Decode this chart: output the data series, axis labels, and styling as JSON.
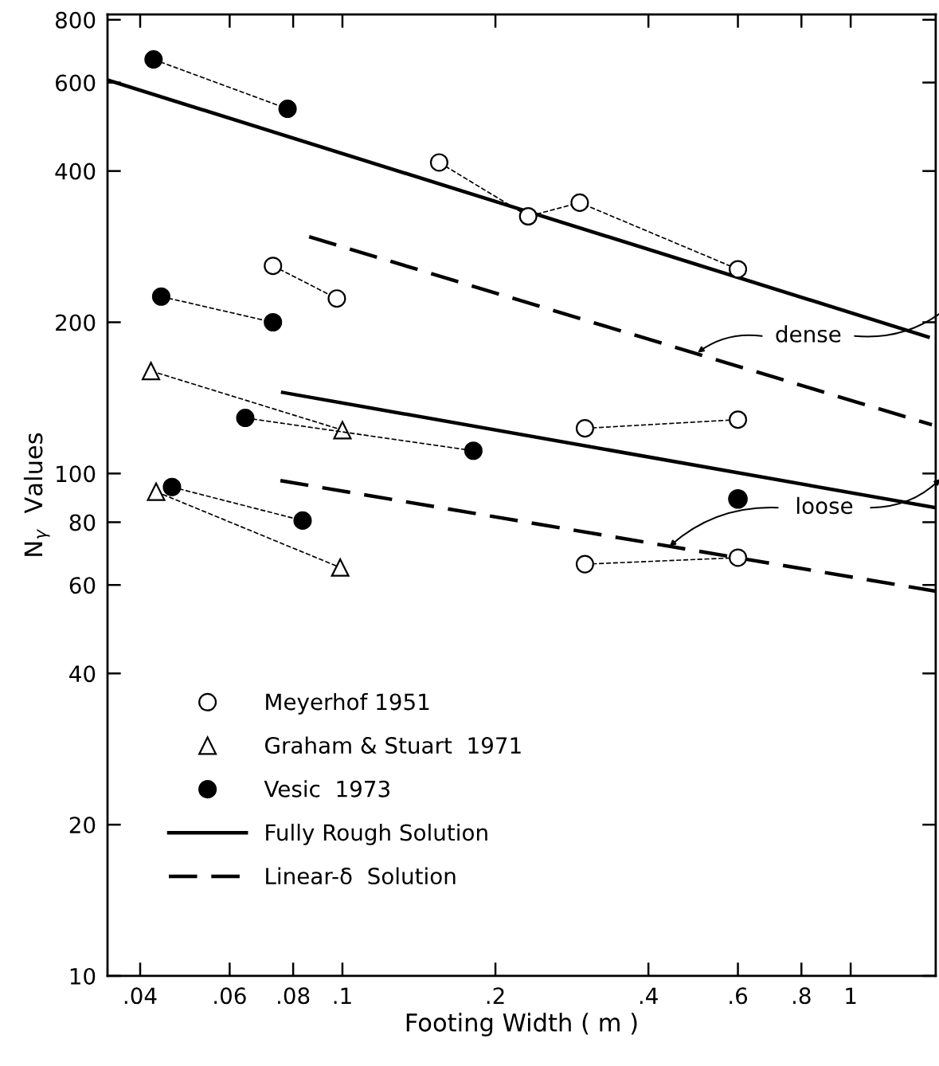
{
  "chart_data": {
    "type": "line",
    "xlabel": "Footing Width ( m )",
    "ylabel": "N$_{γ}$  Values",
    "log": "xy",
    "xlim": [
      0.0345,
      1.47
    ],
    "ylim": [
      10,
      820
    ],
    "xticks": [
      {
        "value": 0.04,
        "label": ".04"
      },
      {
        "value": 0.06,
        "label": ".06"
      },
      {
        "value": 0.08,
        "label": ".08"
      },
      {
        "value": 0.1,
        "label": ".1"
      },
      {
        "value": 0.2,
        "label": ".2"
      },
      {
        "value": 0.4,
        "label": ".4"
      },
      {
        "value": 0.6,
        "label": ".6"
      },
      {
        "value": 0.8,
        "label": ".8"
      },
      1
    ],
    "yticks": [
      10,
      20,
      40,
      60,
      80,
      100,
      200,
      400,
      600,
      800
    ],
    "grid": false,
    "legend": "bottom left",
    "series": [
      {
        "name": "Meyerhof 1951",
        "marker": "circle",
        "line_style": "dashed",
        "color": "#ffffff",
        "x": [
          0.155,
          0.232,
          0.293,
          0.6
        ],
        "values": [
          416,
          325,
          346,
          255
        ]
      },
      {
        "marker": "circle",
        "line_style": "dashed",
        "color": "#ffffff",
        "x": [
          0.073,
          0.0975
        ],
        "values": [
          259,
          223
        ]
      },
      {
        "marker": "circle",
        "line_style": "dashed",
        "color": "#ffffff",
        "x": [
          0.3,
          0.6
        ],
        "values": [
          123,
          128
        ]
      },
      {
        "marker": "circle",
        "line_style": "dashed",
        "color": "#ffffff",
        "x": [
          0.3,
          0.6
        ],
        "values": [
          66,
          68
        ]
      },
      {
        "name": "Graham & Stuart  1971",
        "marker": "triangle",
        "line_style": "dashed",
        "color": "#ffffff",
        "x": [
          0.042,
          0.1
        ],
        "values": [
          160,
          122
        ]
      },
      {
        "marker": "triangle",
        "line_style": "dashed",
        "color": "#ffffff",
        "x": [
          0.043,
          0.099
        ],
        "values": [
          92,
          65
        ]
      },
      {
        "name": "Vesic  1973",
        "marker": "circle",
        "line_style": "dashed",
        "color": "#000000",
        "x": [
          0.0425,
          0.078
        ],
        "values": [
          667,
          532
        ]
      },
      {
        "marker": "circle",
        "line_style": "dashed",
        "color": "#000000",
        "x": [
          0.044,
          0.073
        ],
        "values": [
          225,
          200
        ]
      },
      {
        "marker": "circle",
        "line_style": "dashed",
        "color": "#000000",
        "x": [
          0.0644,
          0.181
        ],
        "values": [
          129,
          111
        ]
      },
      {
        "marker": "circle",
        "line_style": "dashed",
        "color": "#000000",
        "x": [
          0.0462,
          0.0835
        ],
        "values": [
          94,
          80.6
        ]
      },
      {
        "type": "scatter",
        "marker": "circle",
        "color": "#000000",
        "x": [
          0.6
        ],
        "values": [
          89
        ]
      },
      {
        "name": "Fully Rough Solution",
        "marker": "none",
        "line_style": "solid",
        "color": "#000000",
        "x": [
          0.0345,
          1.42
        ],
        "values": [
          607,
          187
        ]
      },
      {
        "marker": "none",
        "line_style": "solid",
        "color": "#000000",
        "x": [
          0.0763,
          1.47
        ],
        "values": [
          145,
          85.5
        ]
      },
      {
        "name": "Linear-δ  Solution",
        "marker": "none",
        "line_style": "dashed",
        "color": "#000000",
        "x": [
          0.086,
          1.445
        ],
        "values": [
          296,
          125
        ]
      },
      {
        "marker": "none",
        "line_style": "dashed",
        "color": "#000000",
        "x": [
          0.0755,
          1.47
        ],
        "values": [
          96.8,
          58.3
        ]
      }
    ],
    "annotations": [
      {
        "text": "dense",
        "x": 0.5,
        "y": 174
      },
      {
        "text": "loose",
        "x": 0.44,
        "y": 71.6
      }
    ]
  }
}
